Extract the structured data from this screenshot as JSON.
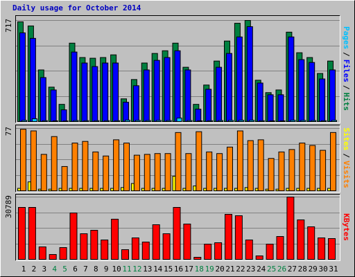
{
  "title": "Daily usage for October 2014",
  "legend_separator": "/",
  "chart_data": [
    {
      "type": "bar",
      "categories": [
        "1",
        "2",
        "3",
        "4",
        "5",
        "6",
        "7",
        "8",
        "9",
        "10",
        "11",
        "12",
        "13",
        "14",
        "15",
        "16",
        "17",
        "18",
        "19",
        "20",
        "21",
        "22",
        "23",
        "24",
        "25",
        "26",
        "27",
        "28",
        "29",
        "30",
        "31"
      ],
      "category_colors": [
        "#000000",
        "#000000",
        "#000000",
        "#008040",
        "#008040",
        "#000000",
        "#000000",
        "#000000",
        "#000000",
        "#000000",
        "#008040",
        "#008040",
        "#000000",
        "#000000",
        "#000000",
        "#000000",
        "#000000",
        "#008040",
        "#008040",
        "#000000",
        "#000000",
        "#000000",
        "#000000",
        "#000000",
        "#008040",
        "#008040",
        "#000000",
        "#000000",
        "#000000",
        "#000000",
        "#000000"
      ],
      "ylim": [
        0,
        717
      ],
      "yticks": [
        717
      ],
      "series": [
        {
          "name": "Hits",
          "color": "#008040",
          "values": [
            707,
            678,
            366,
            244,
            122,
            556,
            454,
            449,
            454,
            473,
            161,
            298,
            415,
            483,
            502,
            556,
            385,
            122,
            259,
            429,
            571,
            697,
            717,
            293,
            205,
            224,
            634,
            488,
            454,
            341,
            429
          ]
        },
        {
          "name": "Files",
          "color": "#0000ff",
          "values": [
            629,
            590,
            312,
            224,
            83,
            493,
            415,
            390,
            415,
            415,
            137,
            254,
            366,
            434,
            454,
            502,
            366,
            88,
            229,
            385,
            483,
            600,
            673,
            273,
            190,
            190,
            600,
            439,
            419,
            302,
            366
          ]
        },
        {
          "name": "Pages",
          "color": "#00c0ff",
          "values": [
            8,
            20,
            6,
            5,
            4,
            7,
            6,
            6,
            6,
            6,
            10,
            8,
            7,
            8,
            7,
            25,
            7,
            5,
            6,
            7,
            8,
            9,
            9,
            6,
            5,
            5,
            9,
            8,
            7,
            6,
            8
          ]
        }
      ]
    },
    {
      "type": "bar",
      "ylim": [
        0,
        77
      ],
      "yticks": [
        77
      ],
      "series": [
        {
          "name": "Sites",
          "color": "#ffff00",
          "values": [
            3,
            11,
            2,
            2,
            3,
            3,
            3,
            3,
            3,
            3,
            4,
            9,
            3,
            3,
            3,
            18,
            3,
            6,
            3,
            3,
            3,
            3,
            4,
            3,
            2,
            2,
            3,
            3,
            3,
            3,
            3
          ]
        },
        {
          "name": "Visits",
          "color": "#ff8000",
          "values": [
            76,
            74,
            45,
            67,
            30,
            59,
            61,
            48,
            43,
            63,
            59,
            44,
            45,
            46,
            46,
            72,
            46,
            73,
            48,
            46,
            54,
            74,
            62,
            63,
            40,
            48,
            51,
            59,
            56,
            50,
            72
          ]
        }
      ]
    },
    {
      "type": "bar",
      "ylim": [
        0,
        30789
      ],
      "yticks": [
        30789
      ],
      "series": [
        {
          "name": "KBytes",
          "color": "#ff0000",
          "values": [
            25658,
            25658,
            6158,
            2395,
            5816,
            22921,
            12658,
            14368,
            9579,
            19842,
            4789,
            10605,
            8553,
            17105,
            12658,
            25658,
            17447,
            1026,
            7526,
            8211,
            22237,
            21552,
            9579,
            1711,
            7526,
            11289,
            30789,
            19500,
            16079,
            10605,
            10263
          ]
        }
      ]
    }
  ]
}
